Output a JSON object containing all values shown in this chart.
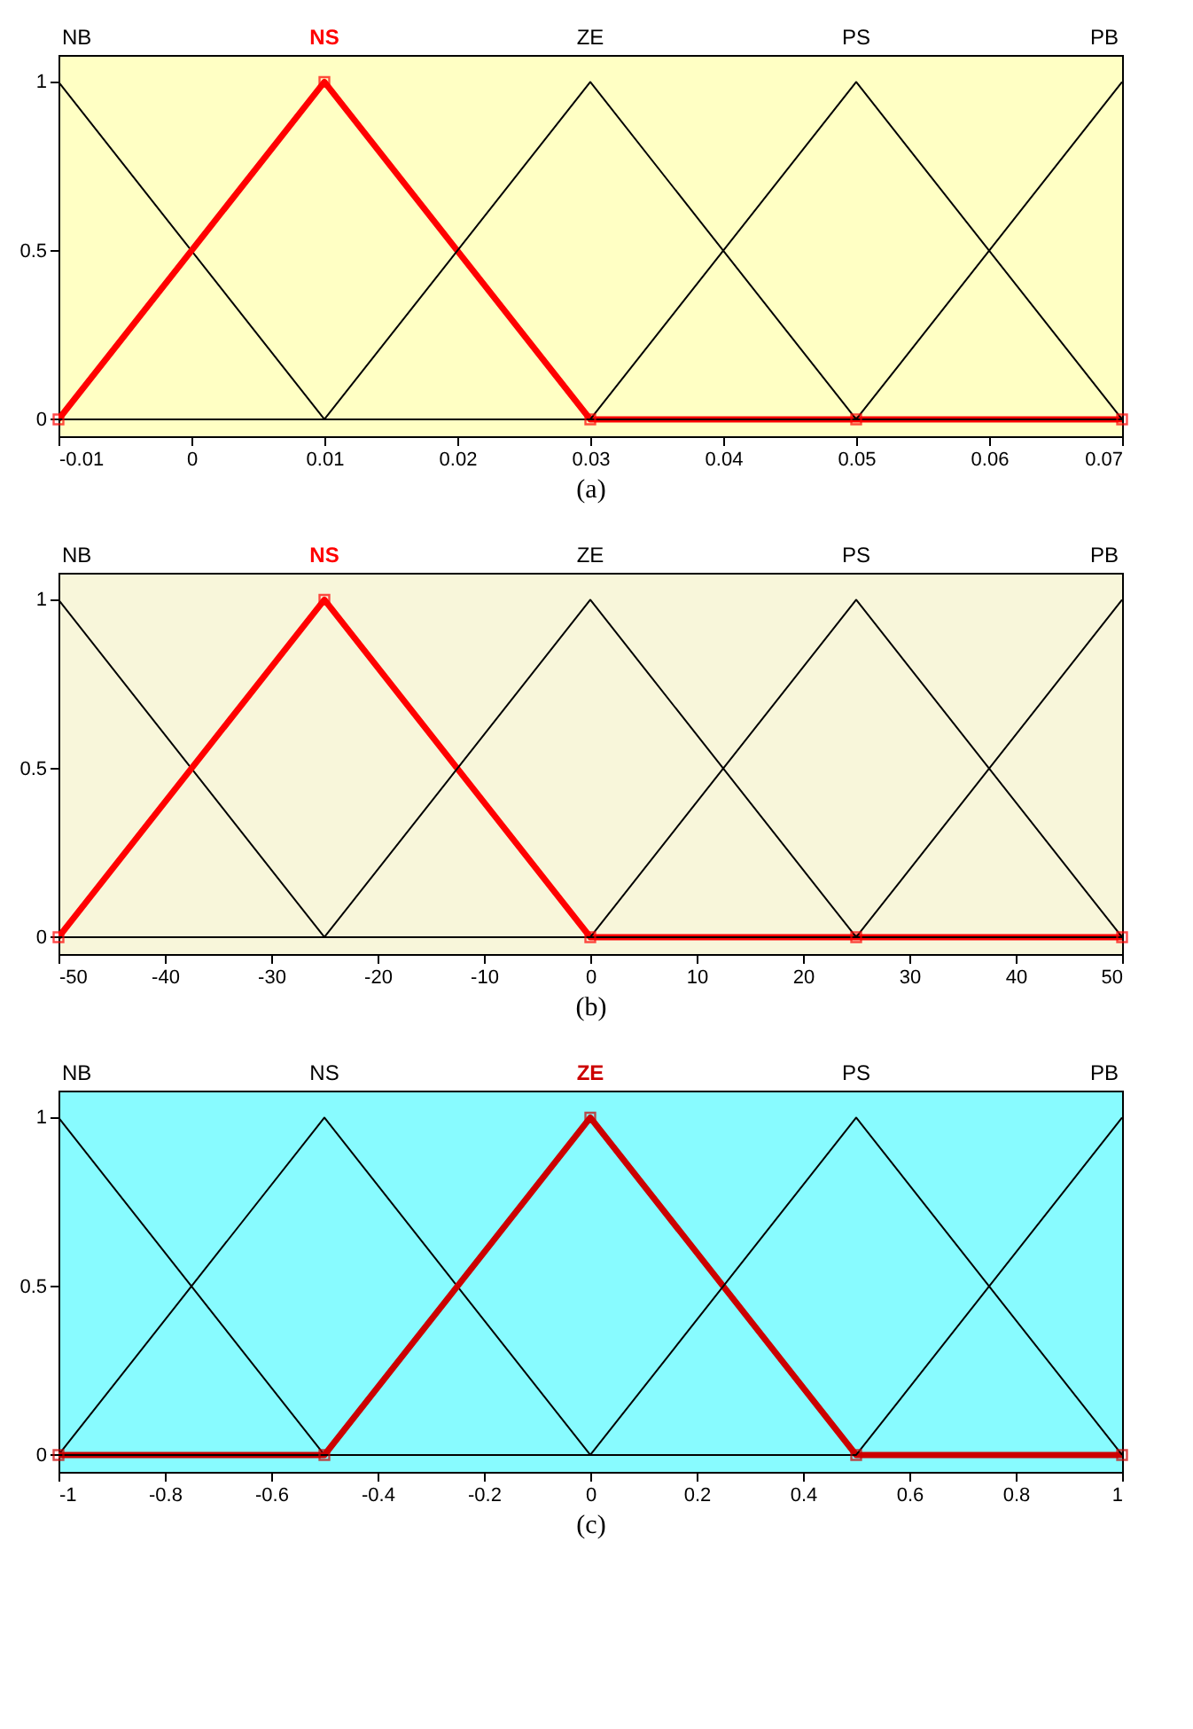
{
  "chart_data": [
    {
      "type": "line",
      "xlabel": "(a)",
      "x": [
        -0.01,
        0.01,
        0.03,
        0.05,
        0.07
      ],
      "xlim": [
        -0.01,
        0.07
      ],
      "xticks": [
        -0.01,
        0,
        0.01,
        0.02,
        0.03,
        0.04,
        0.05,
        0.06,
        0.07
      ],
      "ylim": [
        -0.05,
        1.08
      ],
      "yticks": [
        0,
        0.5,
        1
      ],
      "grid": false,
      "series": [
        {
          "name": "NB",
          "color": "#000000",
          "values": [
            1,
            0,
            0,
            0,
            0
          ]
        },
        {
          "name": "NS",
          "color": "#ff0000",
          "values": [
            0,
            1,
            0,
            0,
            0
          ],
          "marker": "square"
        },
        {
          "name": "ZE",
          "color": "#000000",
          "values": [
            0,
            0,
            1,
            0,
            0
          ]
        },
        {
          "name": "PS",
          "color": "#000000",
          "values": [
            0,
            0,
            0,
            1,
            0
          ]
        },
        {
          "name": "PB",
          "color": "#000000",
          "values": [
            0,
            0,
            0,
            0,
            1
          ]
        }
      ]
    },
    {
      "type": "line",
      "xlabel": "(b)",
      "x": [
        -50,
        -25,
        0,
        25,
        50
      ],
      "xlim": [
        -50,
        50
      ],
      "xticks": [
        -50,
        -40,
        -30,
        -20,
        -10,
        0,
        10,
        20,
        30,
        40,
        50
      ],
      "ylim": [
        -0.05,
        1.08
      ],
      "yticks": [
        0,
        0.5,
        1
      ],
      "grid": false,
      "series": [
        {
          "name": "NB",
          "color": "#000000",
          "values": [
            1,
            0,
            0,
            0,
            0
          ]
        },
        {
          "name": "NS",
          "color": "#ff0000",
          "values": [
            0,
            1,
            0,
            0,
            0
          ],
          "marker": "square"
        },
        {
          "name": "ZE",
          "color": "#000000",
          "values": [
            0,
            0,
            1,
            0,
            0
          ]
        },
        {
          "name": "PS",
          "color": "#000000",
          "values": [
            0,
            0,
            0,
            1,
            0
          ]
        },
        {
          "name": "PB",
          "color": "#000000",
          "values": [
            0,
            0,
            0,
            0,
            1
          ]
        }
      ]
    },
    {
      "type": "line",
      "xlabel": "(c)",
      "x": [
        -1,
        -0.5,
        0,
        0.5,
        1
      ],
      "xlim": [
        -1,
        1
      ],
      "xticks": [
        -1,
        -0.8,
        -0.6,
        -0.4,
        -0.2,
        0,
        0.2,
        0.4,
        0.6,
        0.8,
        1
      ],
      "ylim": [
        -0.05,
        1.08
      ],
      "yticks": [
        0,
        0.5,
        1
      ],
      "grid": false,
      "series": [
        {
          "name": "NB",
          "color": "#000000",
          "values": [
            1,
            0,
            0,
            0,
            0
          ]
        },
        {
          "name": "NS",
          "color": "#000000",
          "values": [
            0,
            1,
            0,
            0,
            0
          ]
        },
        {
          "name": "ZE",
          "color": "#cc0000",
          "values": [
            0,
            0,
            1,
            0,
            0
          ],
          "marker": "square"
        },
        {
          "name": "PS",
          "color": "#000000",
          "values": [
            0,
            0,
            0,
            1,
            0
          ]
        },
        {
          "name": "PB",
          "color": "#000000",
          "values": [
            0,
            0,
            0,
            0,
            1
          ]
        }
      ]
    }
  ]
}
